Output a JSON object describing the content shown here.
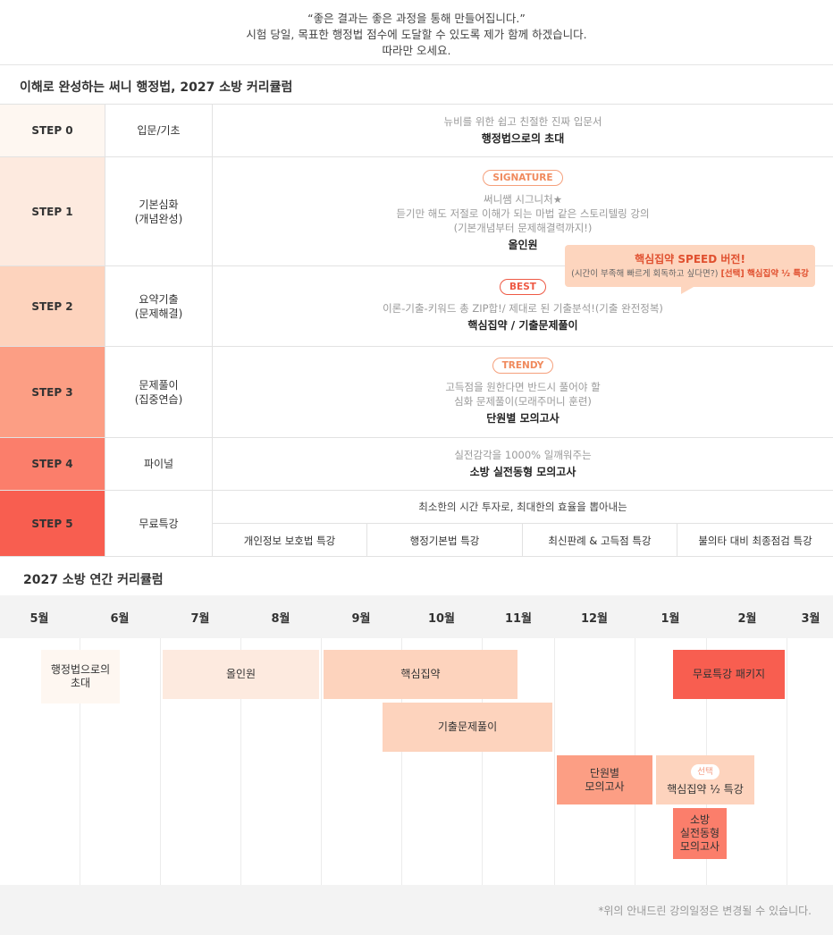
{
  "intro": {
    "line1": "“좋은 결과는 좋은 과정을 통해 만들어집니다.”",
    "line2": "시험 당일, 목표한 행정법 점수에 도달할 수 있도록 제가 함께 하겠습니다.",
    "line3": "따라만 오세요."
  },
  "curriculum": {
    "title": "이해로 완성하는 써니 행정법, 2027 소방 커리큘럼",
    "steps": [
      {
        "step": "STEP 0",
        "category": [
          "입문/기초"
        ],
        "badge": "",
        "desc": [
          "뉴비를 위한 쉽고 친절한 진짜 입문서"
        ],
        "course": "행정법으로의 초대",
        "color": "#fef7f1"
      },
      {
        "step": "STEP 1",
        "category": [
          "기본심화",
          "(개념완성)"
        ],
        "badge": "SIGNATURE",
        "desc": [
          "써니쌤 시그니처★",
          "듣기만 해도 저절로 이해가 되는 마법 같은 스토리텔링 강의",
          "(기본개념부터 문제해결력까지!)"
        ],
        "course": "올인원",
        "color": "#fdeadf"
      },
      {
        "step": "STEP 2",
        "category": [
          "요약기출",
          "(문제해결)"
        ],
        "badge": "BEST",
        "desc": [
          "이론-기출-키워드 총 ZIP합!/ 제대로 된 기출분석!(기출 완전정복)"
        ],
        "course": "핵심집약 / 기출문제풀이",
        "color": "#fdd3bd"
      },
      {
        "step": "STEP 3",
        "category": [
          "문제풀이",
          "(집중연습)"
        ],
        "badge": "TRENDY",
        "desc": [
          "고득점을 원한다면 반드시 풀어야 할",
          "심화 문제풀이(모래주머니 훈련)"
        ],
        "course": "단원별 모의고사",
        "color": "#fc9e84"
      },
      {
        "step": "STEP 4",
        "category": [
          "파이널"
        ],
        "badge": "",
        "desc": [
          "실전감각을 1000% 일깨워주는"
        ],
        "course": "소방 실전동형 모의고사",
        "color": "#fb7e6b"
      },
      {
        "step": "STEP 5",
        "category": [
          "무료특강"
        ],
        "badge": "",
        "desc": [],
        "course": "",
        "color": "#f85e50"
      }
    ],
    "tooltip": {
      "title": "핵심집약 SPEED 버전!",
      "sub_prefix": "(시간이 부족해 빠르게 회독하고 싶다면?) ",
      "sub_highlight": "[선택] 핵심집약 ½ 특강"
    },
    "free": {
      "intro": "최소한의 시간 투자로, 최대한의 효율을 뽑아내는",
      "items": [
        "개인정보 보호법 특강",
        "행정기본법 특강",
        "최신판례 & 고득점 특강",
        "불의타 대비 최종점검 특강"
      ]
    }
  },
  "annual": {
    "title": "2027 소방 연간 커리큘럼",
    "months": [
      "5월",
      "6월",
      "7월",
      "8월",
      "9월",
      "10월",
      "11월",
      "12월",
      "1월",
      "2월",
      "3월"
    ],
    "bars": [
      {
        "lines": [
          "행정법으로의",
          "초대"
        ],
        "color": "#fef7f1",
        "pill": ""
      },
      {
        "lines": [
          "올인원"
        ],
        "color": "#fdeadf",
        "pill": ""
      },
      {
        "lines": [
          "핵심집약"
        ],
        "color": "#fdd3bd",
        "pill": ""
      },
      {
        "lines": [
          "기출문제풀이"
        ],
        "color": "#fdd3bd",
        "pill": ""
      },
      {
        "lines": [
          "단원별",
          "모의고사"
        ],
        "color": "#fc9e84",
        "pill": ""
      },
      {
        "lines": [
          "핵심집약 ½ 특강"
        ],
        "color": "#fdd3bd",
        "pill": "선택"
      },
      {
        "lines": [
          "소방",
          "실전동형",
          "모의고사"
        ],
        "color": "#fb7e6b",
        "pill": ""
      },
      {
        "lines": [
          "무료특강 패키지"
        ],
        "color": "#f85e50",
        "pill": ""
      }
    ]
  },
  "footnote": "*위의 안내드린 강의일정은 변경될 수 있습니다."
}
